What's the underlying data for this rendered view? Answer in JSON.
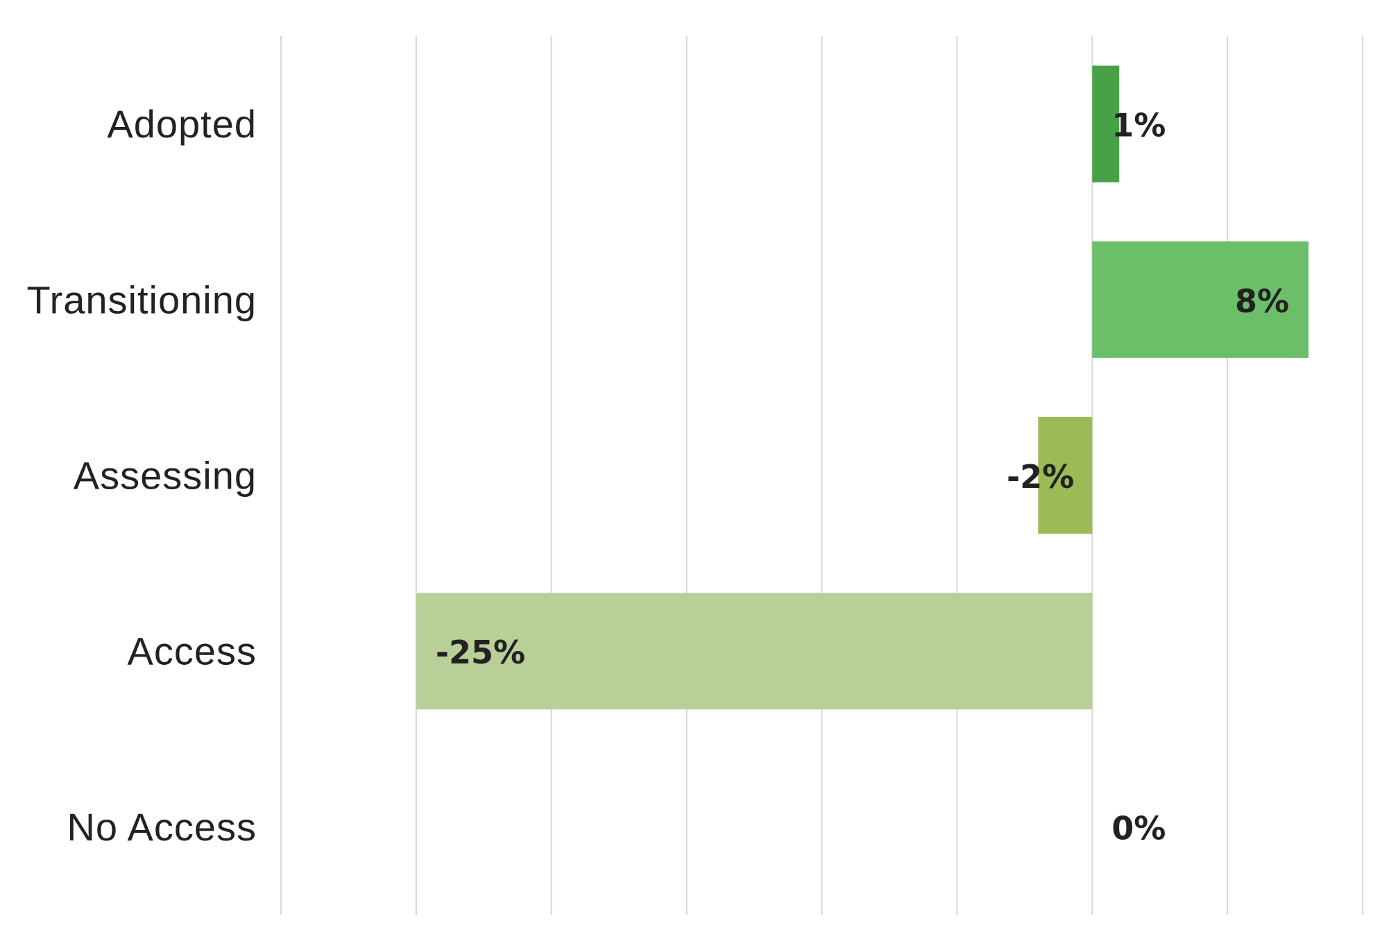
{
  "chart_data": {
    "type": "bar",
    "orientation": "horizontal",
    "title": "",
    "xlabel": "",
    "ylabel": "",
    "categories": [
      "Adopted",
      "Transitioning",
      "Assessing",
      "Access",
      "No Access"
    ],
    "values": [
      1,
      8,
      -2,
      -25,
      0
    ],
    "labels": [
      "1%",
      "8%",
      "-2%",
      "-25%",
      "0%"
    ],
    "colors": [
      "#48a147",
      "#6cbf69",
      "#9bbb57",
      "#b9cf98",
      "#b9cf98"
    ],
    "xlim": [
      -30,
      10
    ],
    "grid_step": 5,
    "grid": true,
    "legend": "none"
  }
}
